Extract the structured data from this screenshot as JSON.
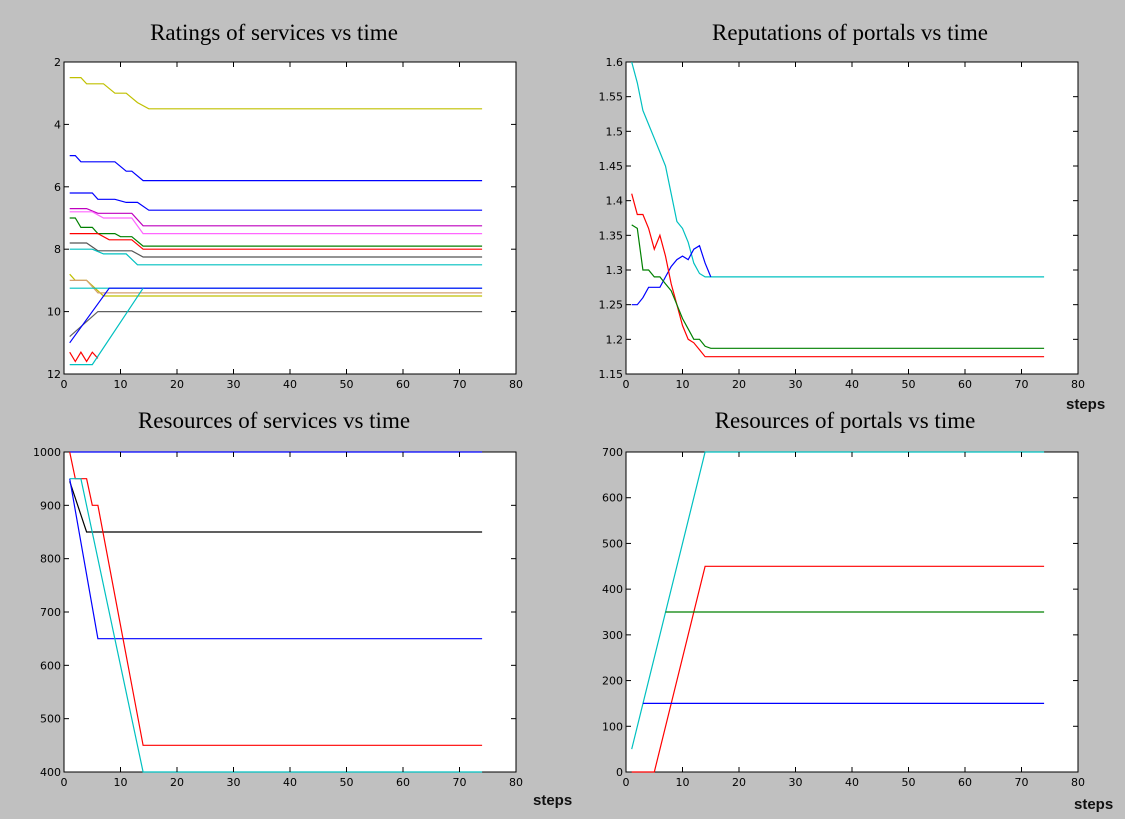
{
  "chart_data": [
    {
      "id": "ratings-services",
      "type": "line",
      "title": "Ratings of services vs time",
      "xlabel": "",
      "ylabel": "",
      "xlim": [
        0,
        80
      ],
      "ylim": [
        2,
        12
      ],
      "y_reversed": true,
      "xticks": [
        0,
        10,
        20,
        30,
        40,
        50,
        60,
        70,
        80
      ],
      "yticks": [
        2,
        4,
        6,
        8,
        10,
        12
      ],
      "grid": false,
      "series": [
        {
          "color": "#c0c000",
          "points": [
            [
              1,
              2.5
            ],
            [
              3,
              2.5
            ],
            [
              4,
              2.7
            ],
            [
              7,
              2.7
            ],
            [
              9,
              3.0
            ],
            [
              11,
              3.0
            ],
            [
              13,
              3.3
            ],
            [
              15,
              3.5
            ],
            [
              74,
              3.5
            ]
          ]
        },
        {
          "color": "#0000ff",
          "points": [
            [
              1,
              5.0
            ],
            [
              2,
              5.0
            ],
            [
              3,
              5.2
            ],
            [
              9,
              5.2
            ],
            [
              11,
              5.5
            ],
            [
              12,
              5.5
            ],
            [
              14,
              5.8
            ],
            [
              74,
              5.8
            ]
          ]
        },
        {
          "color": "#0000ff",
          "points": [
            [
              1,
              6.2
            ],
            [
              5,
              6.2
            ],
            [
              6,
              6.4
            ],
            [
              9,
              6.4
            ],
            [
              11,
              6.5
            ],
            [
              13,
              6.5
            ],
            [
              15,
              6.75
            ],
            [
              74,
              6.75
            ]
          ]
        },
        {
          "color": "#bf00bf",
          "points": [
            [
              1,
              6.7
            ],
            [
              4,
              6.7
            ],
            [
              6,
              6.85
            ],
            [
              12,
              6.85
            ],
            [
              14,
              7.25
            ],
            [
              74,
              7.25
            ]
          ]
        },
        {
          "color": "#ff66ff",
          "points": [
            [
              1,
              6.8
            ],
            [
              5,
              6.8
            ],
            [
              7,
              7.0
            ],
            [
              12,
              7.0
            ],
            [
              14,
              7.5
            ],
            [
              74,
              7.5
            ]
          ]
        },
        {
          "color": "#008000",
          "points": [
            [
              1,
              7.0
            ],
            [
              2,
              7.0
            ],
            [
              3,
              7.3
            ],
            [
              5,
              7.3
            ],
            [
              6,
              7.5
            ],
            [
              9,
              7.5
            ],
            [
              10,
              7.6
            ],
            [
              12,
              7.6
            ],
            [
              14,
              7.9
            ],
            [
              74,
              7.9
            ]
          ]
        },
        {
          "color": "#ff0000",
          "points": [
            [
              1,
              7.5
            ],
            [
              6,
              7.5
            ],
            [
              8,
              7.7
            ],
            [
              12,
              7.7
            ],
            [
              14,
              8.0
            ],
            [
              74,
              8.0
            ]
          ]
        },
        {
          "color": "#555555",
          "points": [
            [
              1,
              7.8
            ],
            [
              4,
              7.8
            ],
            [
              6,
              8.05
            ],
            [
              12,
              8.05
            ],
            [
              14,
              8.25
            ],
            [
              74,
              8.25
            ]
          ]
        },
        {
          "color": "#00c0c0",
          "points": [
            [
              1,
              8.0
            ],
            [
              5,
              8.0
            ],
            [
              7,
              8.15
            ],
            [
              11,
              8.15
            ],
            [
              13,
              8.5
            ],
            [
              74,
              8.5
            ]
          ]
        },
        {
          "color": "#c0c000",
          "points": [
            [
              1,
              8.8
            ],
            [
              2,
              9.0
            ],
            [
              4,
              9.0
            ],
            [
              7,
              9.5
            ],
            [
              74,
              9.5
            ]
          ]
        },
        {
          "color": "#d4a070",
          "points": [
            [
              1,
              9.0
            ],
            [
              4,
              9.0
            ],
            [
              6,
              9.4
            ],
            [
              14,
              9.4
            ],
            [
              74,
              9.4
            ]
          ]
        },
        {
          "color": "#00c0c0",
          "points": [
            [
              1,
              9.25
            ],
            [
              74,
              9.25
            ]
          ]
        },
        {
          "color": "#606060",
          "points": [
            [
              1,
              10.8
            ],
            [
              6,
              10.0
            ],
            [
              74,
              10.0
            ]
          ]
        },
        {
          "color": "#0000ff",
          "points": [
            [
              1,
              11.0
            ],
            [
              8,
              9.25
            ],
            [
              74,
              9.25
            ]
          ]
        },
        {
          "color": "#ff0000",
          "points": [
            [
              1,
              11.3
            ],
            [
              2,
              11.6
            ],
            [
              3,
              11.3
            ],
            [
              4,
              11.6
            ],
            [
              5,
              11.3
            ],
            [
              6,
              11.5
            ]
          ]
        },
        {
          "color": "#00c0c0",
          "points": [
            [
              1,
              11.7
            ],
            [
              5,
              11.7
            ],
            [
              14,
              9.25
            ]
          ]
        }
      ]
    },
    {
      "id": "reputations-portals",
      "type": "line",
      "title": "Reputations of portals vs time",
      "xlabel": "steps",
      "ylabel": "",
      "xlim": [
        0,
        80
      ],
      "ylim": [
        1.15,
        1.6
      ],
      "xticks": [
        0,
        10,
        20,
        30,
        40,
        50,
        60,
        70,
        80
      ],
      "yticks": [
        "1.15",
        "1.2",
        "1.25",
        "1.3",
        "1.35",
        "1.4",
        "1.45",
        "1.5",
        "1.55",
        "1.6"
      ],
      "grid": false,
      "series": [
        {
          "color": "#00c0c0",
          "points": [
            [
              1,
              1.6
            ],
            [
              2,
              1.57
            ],
            [
              3,
              1.53
            ],
            [
              4,
              1.51
            ],
            [
              5,
              1.49
            ],
            [
              6,
              1.47
            ],
            [
              7,
              1.45
            ],
            [
              8,
              1.41
            ],
            [
              9,
              1.37
            ],
            [
              10,
              1.36
            ],
            [
              11,
              1.34
            ],
            [
              12,
              1.31
            ],
            [
              13,
              1.295
            ],
            [
              14,
              1.29
            ],
            [
              74,
              1.29
            ]
          ]
        },
        {
          "color": "#0000ff",
          "points": [
            [
              1,
              1.25
            ],
            [
              2,
              1.25
            ],
            [
              3,
              1.26
            ],
            [
              4,
              1.275
            ],
            [
              6,
              1.275
            ],
            [
              7,
              1.29
            ],
            [
              8,
              1.305
            ],
            [
              9,
              1.315
            ],
            [
              10,
              1.32
            ],
            [
              11,
              1.315
            ],
            [
              12,
              1.33
            ],
            [
              13,
              1.335
            ],
            [
              14,
              1.31
            ],
            [
              15,
              1.29
            ]
          ]
        },
        {
          "color": "#ff0000",
          "points": [
            [
              1,
              1.41
            ],
            [
              2,
              1.38
            ],
            [
              3,
              1.38
            ],
            [
              4,
              1.36
            ],
            [
              5,
              1.33
            ],
            [
              6,
              1.35
            ],
            [
              7,
              1.32
            ],
            [
              8,
              1.28
            ],
            [
              9,
              1.25
            ],
            [
              10,
              1.22
            ],
            [
              11,
              1.2
            ],
            [
              12,
              1.195
            ],
            [
              13,
              1.185
            ],
            [
              14,
              1.175
            ],
            [
              74,
              1.175
            ]
          ]
        },
        {
          "color": "#008000",
          "points": [
            [
              1,
              1.365
            ],
            [
              2,
              1.36
            ],
            [
              3,
              1.3
            ],
            [
              4,
              1.3
            ],
            [
              5,
              1.29
            ],
            [
              6,
              1.29
            ],
            [
              7,
              1.28
            ],
            [
              8,
              1.27
            ],
            [
              9,
              1.25
            ],
            [
              10,
              1.23
            ],
            [
              11,
              1.215
            ],
            [
              12,
              1.2
            ],
            [
              13,
              1.2
            ],
            [
              14,
              1.19
            ],
            [
              15,
              1.187
            ],
            [
              74,
              1.187
            ]
          ]
        }
      ]
    },
    {
      "id": "resources-services",
      "type": "line",
      "title": "Resources of services vs time",
      "xlabel": "steps",
      "ylabel": "",
      "xlim": [
        0,
        80
      ],
      "ylim": [
        400,
        1000
      ],
      "xticks": [
        0,
        10,
        20,
        30,
        40,
        50,
        60,
        70,
        80
      ],
      "yticks": [
        400,
        500,
        600,
        700,
        800,
        900,
        1000
      ],
      "grid": false,
      "series": [
        {
          "color": "#0000ff",
          "points": [
            [
              1,
              1000
            ],
            [
              74,
              1000
            ]
          ]
        },
        {
          "color": "#000000",
          "points": [
            [
              1,
              945
            ],
            [
              4,
              850
            ],
            [
              74,
              850
            ]
          ]
        },
        {
          "color": "#0000ff",
          "points": [
            [
              1,
              950
            ],
            [
              6,
              650
            ],
            [
              74,
              650
            ]
          ]
        },
        {
          "color": "#ff0000",
          "points": [
            [
              1,
              1000
            ],
            [
              2,
              950
            ],
            [
              4,
              950
            ],
            [
              5,
              900
            ],
            [
              6,
              900
            ],
            [
              14,
              450
            ],
            [
              74,
              450
            ]
          ]
        },
        {
          "color": "#00c0c0",
          "points": [
            [
              1,
              950
            ],
            [
              3,
              950
            ],
            [
              14,
              400
            ],
            [
              74,
              400
            ]
          ]
        }
      ]
    },
    {
      "id": "resources-portals",
      "type": "line",
      "title": "Resources of portals vs time",
      "xlabel": "steps",
      "ylabel": "",
      "xlim": [
        0,
        80
      ],
      "ylim": [
        0,
        700
      ],
      "xticks": [
        0,
        10,
        20,
        30,
        40,
        50,
        60,
        70,
        80
      ],
      "yticks": [
        0,
        100,
        200,
        300,
        400,
        500,
        600,
        700
      ],
      "grid": false,
      "series": [
        {
          "color": "#00c0c0",
          "points": [
            [
              1,
              50
            ],
            [
              14,
              700
            ],
            [
              74,
              700
            ]
          ]
        },
        {
          "color": "#ff0000",
          "points": [
            [
              1,
              0
            ],
            [
              5,
              0
            ],
            [
              14,
              450
            ],
            [
              74,
              450
            ]
          ]
        },
        {
          "color": "#008000",
          "points": [
            [
              7,
              350
            ],
            [
              74,
              350
            ]
          ]
        },
        {
          "color": "#0000ff",
          "points": [
            [
              3,
              150
            ],
            [
              74,
              150
            ]
          ]
        }
      ]
    }
  ]
}
